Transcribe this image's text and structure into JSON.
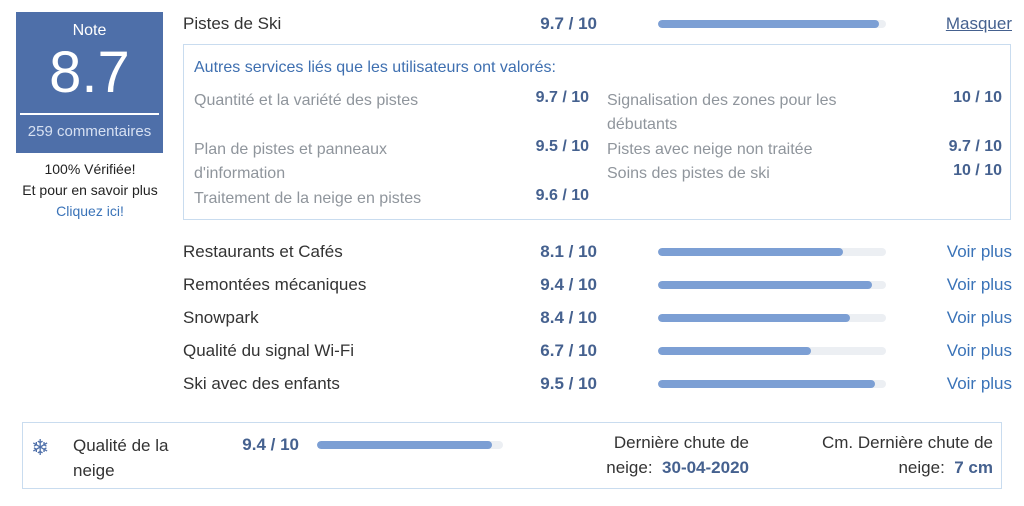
{
  "score": {
    "label": "Note",
    "value": "8.7",
    "reviews": "259 commentaires"
  },
  "verified": {
    "line1": "100% Vérifiée!",
    "line2": "Et pour en savoir plus",
    "link": "Cliquez ici!"
  },
  "main": {
    "label": "Pistes de Ski",
    "score": "9.7 / 10",
    "fraction": 0.97,
    "link": "Masquer"
  },
  "sub": {
    "title": "Autres services liés que les utilisateurs ont valorés:",
    "left": [
      {
        "label_l1": "Quantité et la variété des pistes",
        "label_l2": "",
        "score": "9.7 / 10"
      },
      {
        "label_l1": "Plan de pistes et panneaux",
        "label_l2": "d'information",
        "score": "9.5 / 10"
      },
      {
        "label_l1": "Traitement de la neige en pistes",
        "label_l2": "",
        "score": "9.6 / 10"
      }
    ],
    "right": [
      {
        "label_l1": "Signalisation des zones pour les",
        "label_l2": "débutants",
        "score": "10 / 10"
      },
      {
        "label_l1": "Pistes avec neige non traitée",
        "label_l2": "",
        "score": "9.7 / 10"
      },
      {
        "label_l1": "Soins des pistes de ski",
        "label_l2": "",
        "score": "10 / 10"
      }
    ]
  },
  "criteria": [
    {
      "label": "Restaurants et Cafés",
      "score": "8.1 / 10",
      "fraction": 0.81,
      "link": "Voir plus"
    },
    {
      "label": "Remontées mécaniques",
      "score": "9.4 / 10",
      "fraction": 0.94,
      "link": "Voir plus"
    },
    {
      "label": "Snowpark",
      "score": "8.4 / 10",
      "fraction": 0.84,
      "link": "Voir plus"
    },
    {
      "label": "Qualité du signal Wi-Fi",
      "score": "6.7 / 10",
      "fraction": 0.67,
      "link": "Voir plus"
    },
    {
      "label": "Ski avec des enfants",
      "score": "9.5 / 10",
      "fraction": 0.95,
      "link": "Voir plus"
    }
  ],
  "snow": {
    "icon": "snowflake-icon",
    "label_l1": "Qualité de la",
    "label_l2": "neige",
    "score": "9.4 / 10",
    "fraction": 0.94,
    "last_fall_l1": "Dernière chute de",
    "last_fall_prefix": "neige:",
    "last_fall_date": "30-04-2020",
    "cm_l1": "Cm. Dernière chute de",
    "cm_prefix": "neige:",
    "cm_value": "7 cm"
  }
}
